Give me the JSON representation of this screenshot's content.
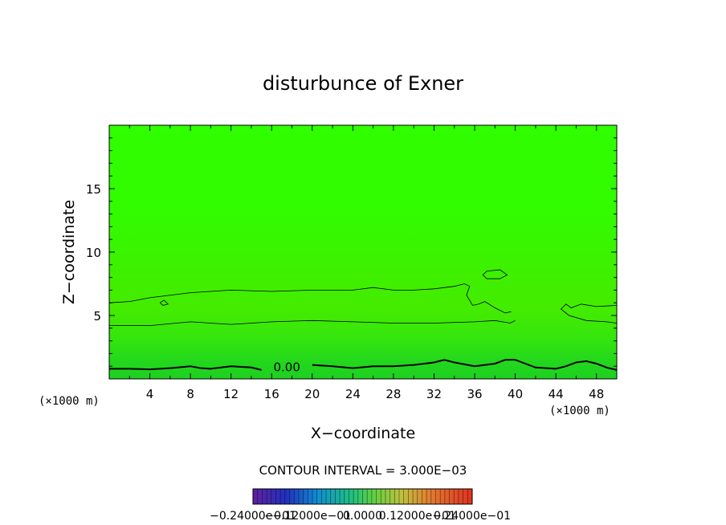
{
  "chart_data": {
    "type": "heatmap",
    "title": "disturbunce of Exner",
    "xlabel": "X−coordinate",
    "ylabel": "Z−coordinate",
    "xunit": "(×1000 m)",
    "yunit": "(×1000 m)",
    "xlim": [
      0,
      50
    ],
    "ylim": [
      0,
      20
    ],
    "xticks": [
      4,
      8,
      12,
      16,
      20,
      24,
      28,
      32,
      36,
      40,
      44,
      48
    ],
    "yticks": [
      5,
      10,
      15
    ],
    "contour_interval_text": "CONTOUR INTERVAL = 3.000E−03",
    "contour_label": "0.00",
    "colorbar_labels": [
      "−0.24000e−01",
      "−0.12000e−01",
      "0.0000",
      "0.12000e−01",
      "0.24000e−01"
    ],
    "colors": {
      "field_top": "#2fff00",
      "field_band": "#41f000",
      "field_low": "#22d61e",
      "contour": "#000000"
    },
    "contours": {
      "zero": [
        [
          0,
          0.8
        ],
        [
          2,
          0.8
        ],
        [
          4,
          0.75
        ],
        [
          6,
          0.85
        ],
        [
          8,
          1.0
        ],
        [
          9,
          0.85
        ],
        [
          10,
          0.8
        ],
        [
          12,
          1.0
        ],
        [
          14,
          0.9
        ],
        [
          15,
          0.7
        ],
        [
          16,
          0.85
        ],
        [
          18,
          0.9
        ],
        [
          19,
          1.0
        ],
        [
          20,
          1.1
        ],
        [
          22,
          1.0
        ],
        [
          24,
          0.85
        ],
        [
          26,
          1.0
        ],
        [
          28,
          1.0
        ],
        [
          30,
          1.1
        ],
        [
          32,
          1.3
        ],
        [
          33,
          1.5
        ],
        [
          34,
          1.3
        ],
        [
          36,
          1.0
        ],
        [
          38,
          1.2
        ],
        [
          39,
          1.5
        ],
        [
          40,
          1.5
        ],
        [
          41,
          1.2
        ],
        [
          42,
          0.9
        ],
        [
          44,
          0.8
        ],
        [
          45,
          1.0
        ],
        [
          46,
          1.3
        ],
        [
          47,
          1.4
        ],
        [
          48,
          1.2
        ],
        [
          49,
          0.9
        ],
        [
          50,
          0.7
        ]
      ],
      "lower": [
        [
          0,
          4.2
        ],
        [
          4,
          4.2
        ],
        [
          8,
          4.5
        ],
        [
          12,
          4.3
        ],
        [
          16,
          4.5
        ],
        [
          20,
          4.6
        ],
        [
          24,
          4.5
        ],
        [
          28,
          4.4
        ],
        [
          32,
          4.4
        ],
        [
          36,
          4.5
        ],
        [
          38,
          4.6
        ],
        [
          39.5,
          4.4
        ],
        [
          40,
          4.6
        ]
      ],
      "upper": [
        [
          0,
          6.0
        ],
        [
          2,
          6.1
        ],
        [
          4,
          6.4
        ],
        [
          8,
          6.8
        ],
        [
          10,
          6.9
        ],
        [
          12,
          7.0
        ],
        [
          16,
          6.9
        ],
        [
          20,
          7.0
        ],
        [
          24,
          7.0
        ],
        [
          26,
          7.2
        ],
        [
          28,
          7.0
        ],
        [
          30,
          7.0
        ],
        [
          32,
          7.1
        ],
        [
          34,
          7.3
        ],
        [
          35,
          7.5
        ],
        [
          35.5,
          7.3
        ],
        [
          35.2,
          6.6
        ],
        [
          35.8,
          5.8
        ],
        [
          36.4,
          5.9
        ],
        [
          37,
          6.1
        ],
        [
          38,
          5.6
        ],
        [
          39,
          5.2
        ],
        [
          39.6,
          5.3
        ]
      ],
      "island": [
        [
          36.8,
          8.2
        ],
        [
          37.2,
          8.5
        ],
        [
          38.5,
          8.6
        ],
        [
          39.2,
          8.2
        ],
        [
          38.5,
          7.9
        ],
        [
          37.2,
          7.9
        ],
        [
          36.8,
          8.2
        ]
      ],
      "small_blob": [
        [
          5,
          6.0
        ],
        [
          5.4,
          6.2
        ],
        [
          5.8,
          5.9
        ],
        [
          5.3,
          5.8
        ],
        [
          5,
          6.0
        ]
      ],
      "right": [
        [
          50,
          5.8
        ],
        [
          48,
          5.7
        ],
        [
          46.5,
          5.9
        ],
        [
          45.5,
          5.6
        ],
        [
          45,
          5.9
        ],
        [
          44.5,
          5.5
        ],
        [
          45.3,
          5.0
        ],
        [
          47,
          4.6
        ],
        [
          49,
          4.5
        ],
        [
          50,
          4.4
        ]
      ]
    }
  }
}
